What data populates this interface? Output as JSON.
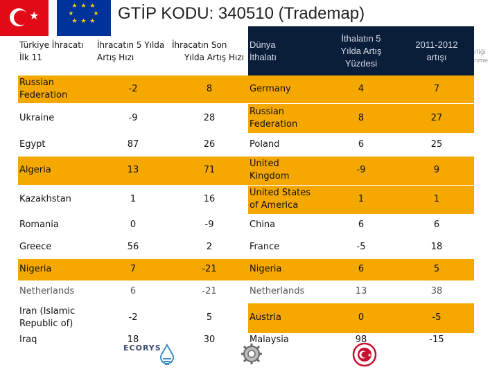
{
  "title": "GTİP KODU: 340510 (Trademap)",
  "header": {
    "col1": [
      "Türkiye İhracatı",
      "İlk 11"
    ],
    "col2": [
      "İhracatın 5 Yılda",
      "Artış Hızı"
    ],
    "col3": [
      "İhracatın Son",
      "Yılda Artış Hızı"
    ],
    "col4": [
      "Dünya",
      "İthalatı"
    ],
    "col5": [
      "İthalatın 5",
      "Yılda Artış",
      "Yüzdesi"
    ],
    "col6": [
      "2011-2012",
      "artışı"
    ]
  },
  "rows": [
    {
      "left": "Russian Federation",
      "a": "-2",
      "b": "8",
      "right": "Germany",
      "c": "4",
      "d": "7"
    },
    {
      "left": "Ukraine",
      "a": "-9",
      "b": "28",
      "right": "Russian Federation",
      "c": "8",
      "d": "27"
    },
    {
      "left": "Egypt",
      "a": "87",
      "b": "26",
      "right": "Poland",
      "c": "6",
      "d": "25"
    },
    {
      "left": "Algeria",
      "a": "13",
      "b": "71",
      "right": "United Kingdom",
      "c": "-9",
      "d": "9"
    },
    {
      "left": "Kazakhstan",
      "a": "1",
      "b": "16",
      "right": "United States of America",
      "c": "1",
      "d": "1"
    },
    {
      "left": "Romania",
      "a": "0",
      "b": "-9",
      "right": "China",
      "c": "6",
      "d": "6"
    },
    {
      "left": "Greece",
      "a": "56",
      "b": "2",
      "right": "France",
      "c": "-5",
      "d": "18"
    },
    {
      "left": "Nigeria",
      "a": "7",
      "b": "-21",
      "right": "Nigeria",
      "c": "6",
      "d": "5"
    },
    {
      "left": "Netherlands",
      "a": "6",
      "b": "-21",
      "right": "Netherlands",
      "c": "13",
      "d": "38"
    },
    {
      "left": "Iran (Islamic Republic of)",
      "a": "-2",
      "b": "5",
      "right": "Austria",
      "c": "0",
      "d": "-5"
    },
    {
      "left": "Iraq",
      "a": "18",
      "b": "30",
      "right": "Malaysia",
      "c": "98",
      "d": "-15"
    }
  ],
  "decor": {
    "side_text": [
      "rliği",
      "nme"
    ],
    "logo_text": "ECORYS"
  },
  "colors": {
    "highlight": "#f5a800",
    "header_dark": "#0a1e3a",
    "turkey_red": "#e30a17",
    "eu_blue": "#003399"
  }
}
